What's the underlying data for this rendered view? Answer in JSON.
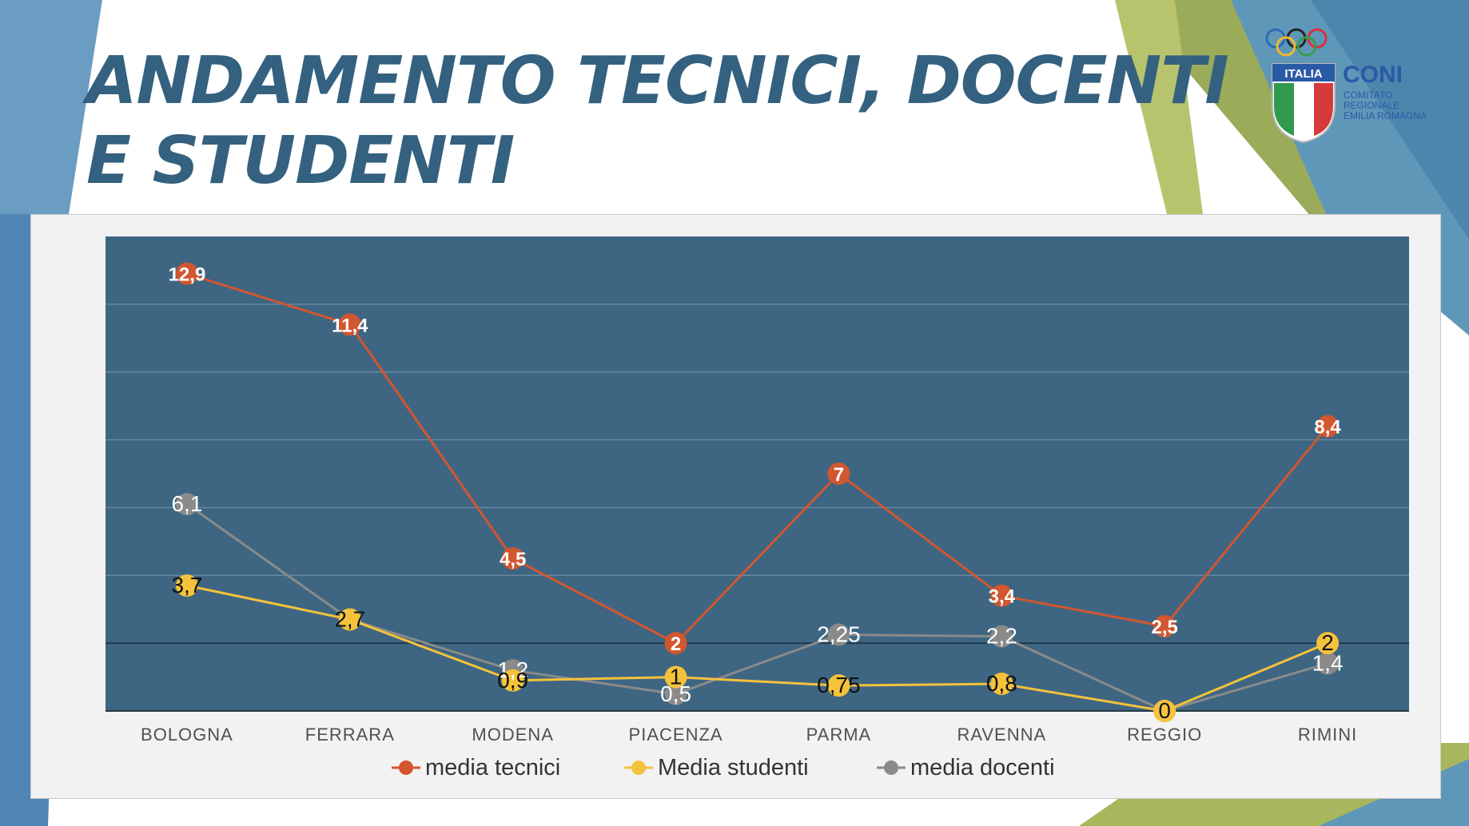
{
  "title": {
    "line1": "ANDAMENTO TECNICI, DOCENTI",
    "line2": "E STUDENTI"
  },
  "logo": {
    "badge": "ITALIA",
    "name": "CONI",
    "sub1": "COMITATO",
    "sub2": "REGIONALE",
    "sub3": "EMILIA ROMAGNA"
  },
  "colors": {
    "plot_bg": "#3e6682",
    "tecnici": "#d2562f",
    "studenti": "#f5c23b",
    "docenti": "#8a8a8a",
    "title": "#33617f"
  },
  "chart_data": {
    "type": "line",
    "categories": [
      "BOLOGNA",
      "FERRARA",
      "MODENA",
      "PIACENZA",
      "PARMA",
      "RAVENNA",
      "REGGIO",
      "RIMINI"
    ],
    "series": [
      {
        "name": "media tecnici",
        "values": [
          12.9,
          11.4,
          4.5,
          2,
          7,
          3.4,
          2.5,
          8.4
        ],
        "labels": [
          "12,9",
          "11,4",
          "4,5",
          "2",
          "7",
          "3,4",
          "2,5",
          "8,4"
        ]
      },
      {
        "name": "Media studenti",
        "values": [
          3.7,
          2.7,
          0.9,
          1,
          0.75,
          0.8,
          0,
          2
        ],
        "labels": [
          "3,7",
          "2,7",
          "0,9",
          "1",
          "0,75",
          "0,8",
          "0",
          "2"
        ]
      },
      {
        "name": "media docenti",
        "values": [
          6.1,
          2.7,
          1.2,
          0.5,
          2.25,
          2.2,
          0,
          1.4
        ],
        "labels": [
          "6,1",
          "2,7",
          "1,2",
          "0,5",
          "2,25",
          "2,2",
          "0",
          "1,4"
        ]
      }
    ],
    "ylim": [
      0,
      14
    ],
    "grid": true,
    "legend": "bottom"
  }
}
